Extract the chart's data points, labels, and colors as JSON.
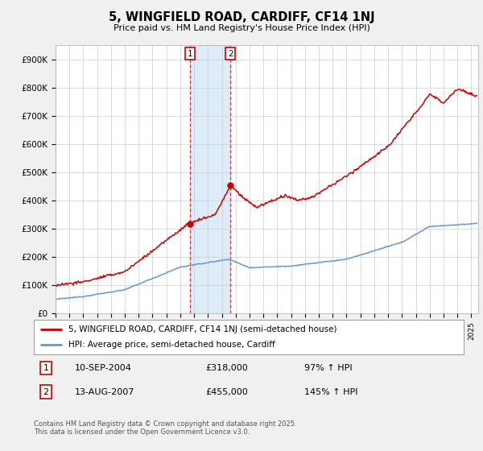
{
  "title": "5, WINGFIELD ROAD, CARDIFF, CF14 1NJ",
  "subtitle": "Price paid vs. HM Land Registry's House Price Index (HPI)",
  "ylabel_ticks": [
    "£0",
    "£100K",
    "£200K",
    "£300K",
    "£400K",
    "£500K",
    "£600K",
    "£700K",
    "£800K",
    "£900K"
  ],
  "ytick_values": [
    0,
    100000,
    200000,
    300000,
    400000,
    500000,
    600000,
    700000,
    800000,
    900000
  ],
  "ylim": [
    0,
    950000
  ],
  "xlim_start": 1995.0,
  "xlim_end": 2025.5,
  "marker1_x": 2004.69,
  "marker1_y": 318000,
  "marker1_label": "1",
  "marker2_x": 2007.62,
  "marker2_y": 455000,
  "marker2_label": "2",
  "line1_color": "#cc0000",
  "line2_color": "#6699cc",
  "shaded_color": "#d6eaf8",
  "legend_line1": "5, WINGFIELD ROAD, CARDIFF, CF14 1NJ (semi-detached house)",
  "legend_line2": "HPI: Average price, semi-detached house, Cardiff",
  "table_row1": [
    "1",
    "10-SEP-2004",
    "£318,000",
    "97% ↑ HPI"
  ],
  "table_row2": [
    "2",
    "13-AUG-2007",
    "£455,000",
    "145% ↑ HPI"
  ],
  "footer": "Contains HM Land Registry data © Crown copyright and database right 2025.\nThis data is licensed under the Open Government Licence v3.0.",
  "background_color": "#f0f0f0",
  "plot_bg_color": "#ffffff"
}
